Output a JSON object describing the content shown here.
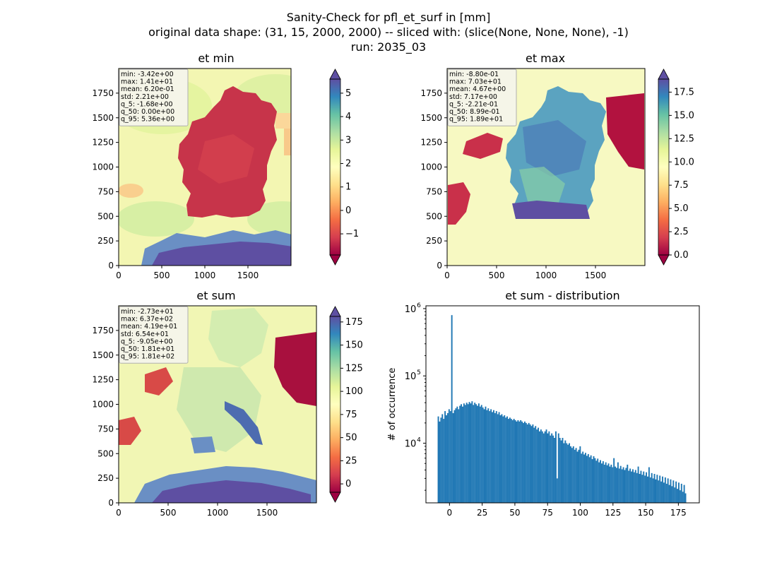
{
  "figure": {
    "title_line1": "Sanity-Check for pfl_et_surf in [mm]",
    "title_line2": "original data shape: (31, 15, 2000, 2000) -- sliced with: (slice(None, None, None), -1)",
    "title_line3": "run: 2035_03"
  },
  "colormap": "Spectral",
  "chart_data": [
    {
      "type": "heatmap",
      "title": "et min",
      "x_ticks": [
        "0",
        "500",
        "1000",
        "1500"
      ],
      "y_ticks": [
        "0",
        "250",
        "500",
        "750",
        "1000",
        "1250",
        "1500",
        "1750"
      ],
      "xlim": [
        0,
        2000
      ],
      "ylim": [
        0,
        2000
      ],
      "colorbar": {
        "ticks": [
          "−1",
          "0",
          "1",
          "2",
          "3",
          "4",
          "5"
        ],
        "tick_values": [
          -1,
          0,
          1,
          2,
          3,
          4,
          5
        ],
        "range": [
          -1.9,
          5.6
        ],
        "extend": "both"
      },
      "stats": [
        "min: -3.42e+00",
        "max: 1.41e+01",
        "mean: 6.20e-01",
        "std: 2.21e+00",
        "q_5: -1.68e+00",
        "q_50: 0.00e+00",
        "q_95: 5.36e+00"
      ]
    },
    {
      "type": "heatmap",
      "title": "et max",
      "x_ticks": [
        "0",
        "500",
        "1000",
        "1500"
      ],
      "y_ticks": [
        "0",
        "250",
        "500",
        "750",
        "1000",
        "1250",
        "1500",
        "1750"
      ],
      "xlim": [
        0,
        2000
      ],
      "ylim": [
        0,
        2000
      ],
      "colorbar": {
        "ticks": [
          "0.0",
          "2.5",
          "5.0",
          "7.5",
          "10.0",
          "12.5",
          "15.0",
          "17.5"
        ],
        "tick_values": [
          0,
          2.5,
          5,
          7.5,
          10,
          12.5,
          15,
          17.5
        ],
        "range": [
          0,
          18.9
        ],
        "extend": "both"
      },
      "stats": [
        "min: -8.80e-01",
        "max: 7.03e+01",
        "mean: 4.67e+00",
        "std: 7.17e+00",
        "q_5: -2.21e-01",
        "q_50: 8.99e-01",
        "q_95: 1.89e+01"
      ]
    },
    {
      "type": "heatmap",
      "title": "et sum",
      "x_ticks": [
        "0",
        "500",
        "1000",
        "1500"
      ],
      "y_ticks": [
        "0",
        "250",
        "500",
        "750",
        "1000",
        "1250",
        "1500",
        "1750"
      ],
      "xlim": [
        0,
        2000
      ],
      "ylim": [
        0,
        2000
      ],
      "colorbar": {
        "ticks": [
          "0",
          "25",
          "50",
          "75",
          "100",
          "125",
          "150",
          "175"
        ],
        "tick_values": [
          0,
          25,
          50,
          75,
          100,
          125,
          150,
          175
        ],
        "range": [
          -9.05,
          181
        ],
        "extend": "both"
      },
      "stats": [
        "min: -2.73e+01",
        "max: 6.37e+02",
        "mean: 4.19e+01",
        "std: 6.54e+01",
        "q_5: -9.05e+00",
        "q_50: 1.81e+01",
        "q_95: 1.81e+02"
      ]
    },
    {
      "type": "bar",
      "title": "et sum - distribution",
      "ylabel": "# of occurrence",
      "xlabel": "",
      "yscale": "log",
      "ylim": [
        1300,
        1100000
      ],
      "xlim": [
        -18,
        191
      ],
      "x_ticks": [
        0,
        25,
        50,
        75,
        100,
        125,
        150,
        175
      ],
      "y_ticks": [
        {
          "value": 10000,
          "base": "10",
          "exp": "4"
        },
        {
          "value": 100000,
          "base": "10",
          "exp": "5"
        },
        {
          "value": 1000000,
          "base": "10",
          "exp": "6"
        }
      ],
      "bin_range": [
        -9.05,
        181
      ],
      "color": "#1f77b4",
      "values": [
        25000,
        21000,
        24000,
        27000,
        23000,
        30000,
        26000,
        28000,
        32000,
        30000,
        800000,
        28000,
        31000,
        33000,
        35000,
        32000,
        36000,
        38000,
        35000,
        39000,
        37000,
        40000,
        38000,
        41000,
        39000,
        42000,
        37000,
        40000,
        38000,
        36000,
        39000,
        35000,
        37000,
        34000,
        32000,
        35000,
        31000,
        33000,
        30000,
        32000,
        29000,
        31000,
        28000,
        30000,
        27000,
        29000,
        26000,
        27000,
        25000,
        26000,
        24000,
        25000,
        23000,
        24000,
        23000,
        22000,
        23000,
        22000,
        21000,
        22000,
        21000,
        22000,
        21000,
        20000,
        21000,
        20000,
        19000,
        20000,
        19000,
        18000,
        19000,
        17000,
        18000,
        16000,
        17000,
        15000,
        16000,
        15000,
        14000,
        15000,
        16000,
        14000,
        15000,
        13000,
        14000,
        13000,
        12000,
        15000,
        3000,
        14000,
        12000,
        11000,
        12000,
        10000,
        11000,
        10000,
        9500,
        10000,
        9000,
        8500,
        9000,
        8000,
        8500,
        7500,
        8000,
        9000,
        7000,
        7500,
        6800,
        7200,
        6500,
        6900,
        6200,
        6600,
        5800,
        6400,
        6000,
        5500,
        5900,
        5200,
        5600,
        5000,
        5400,
        4800,
        5200,
        4700,
        5000,
        4500,
        4800,
        4400,
        6000,
        4500,
        4300,
        5200,
        4200,
        4600,
        4100,
        4400,
        4000,
        4300,
        4800,
        3900,
        4200,
        3800,
        4100,
        3700,
        4000,
        3600,
        4500,
        3500,
        3900,
        3400,
        3800,
        3300,
        3700,
        3200,
        4400,
        3100,
        3600,
        3000,
        3500,
        2900,
        3400,
        2800,
        3300,
        2700,
        3200,
        2600,
        3100,
        2500,
        3000,
        2400,
        2900,
        2300,
        2800,
        2200,
        2700,
        2100,
        2600,
        2000,
        2500,
        1900,
        2400,
        1800
      ]
    }
  ]
}
